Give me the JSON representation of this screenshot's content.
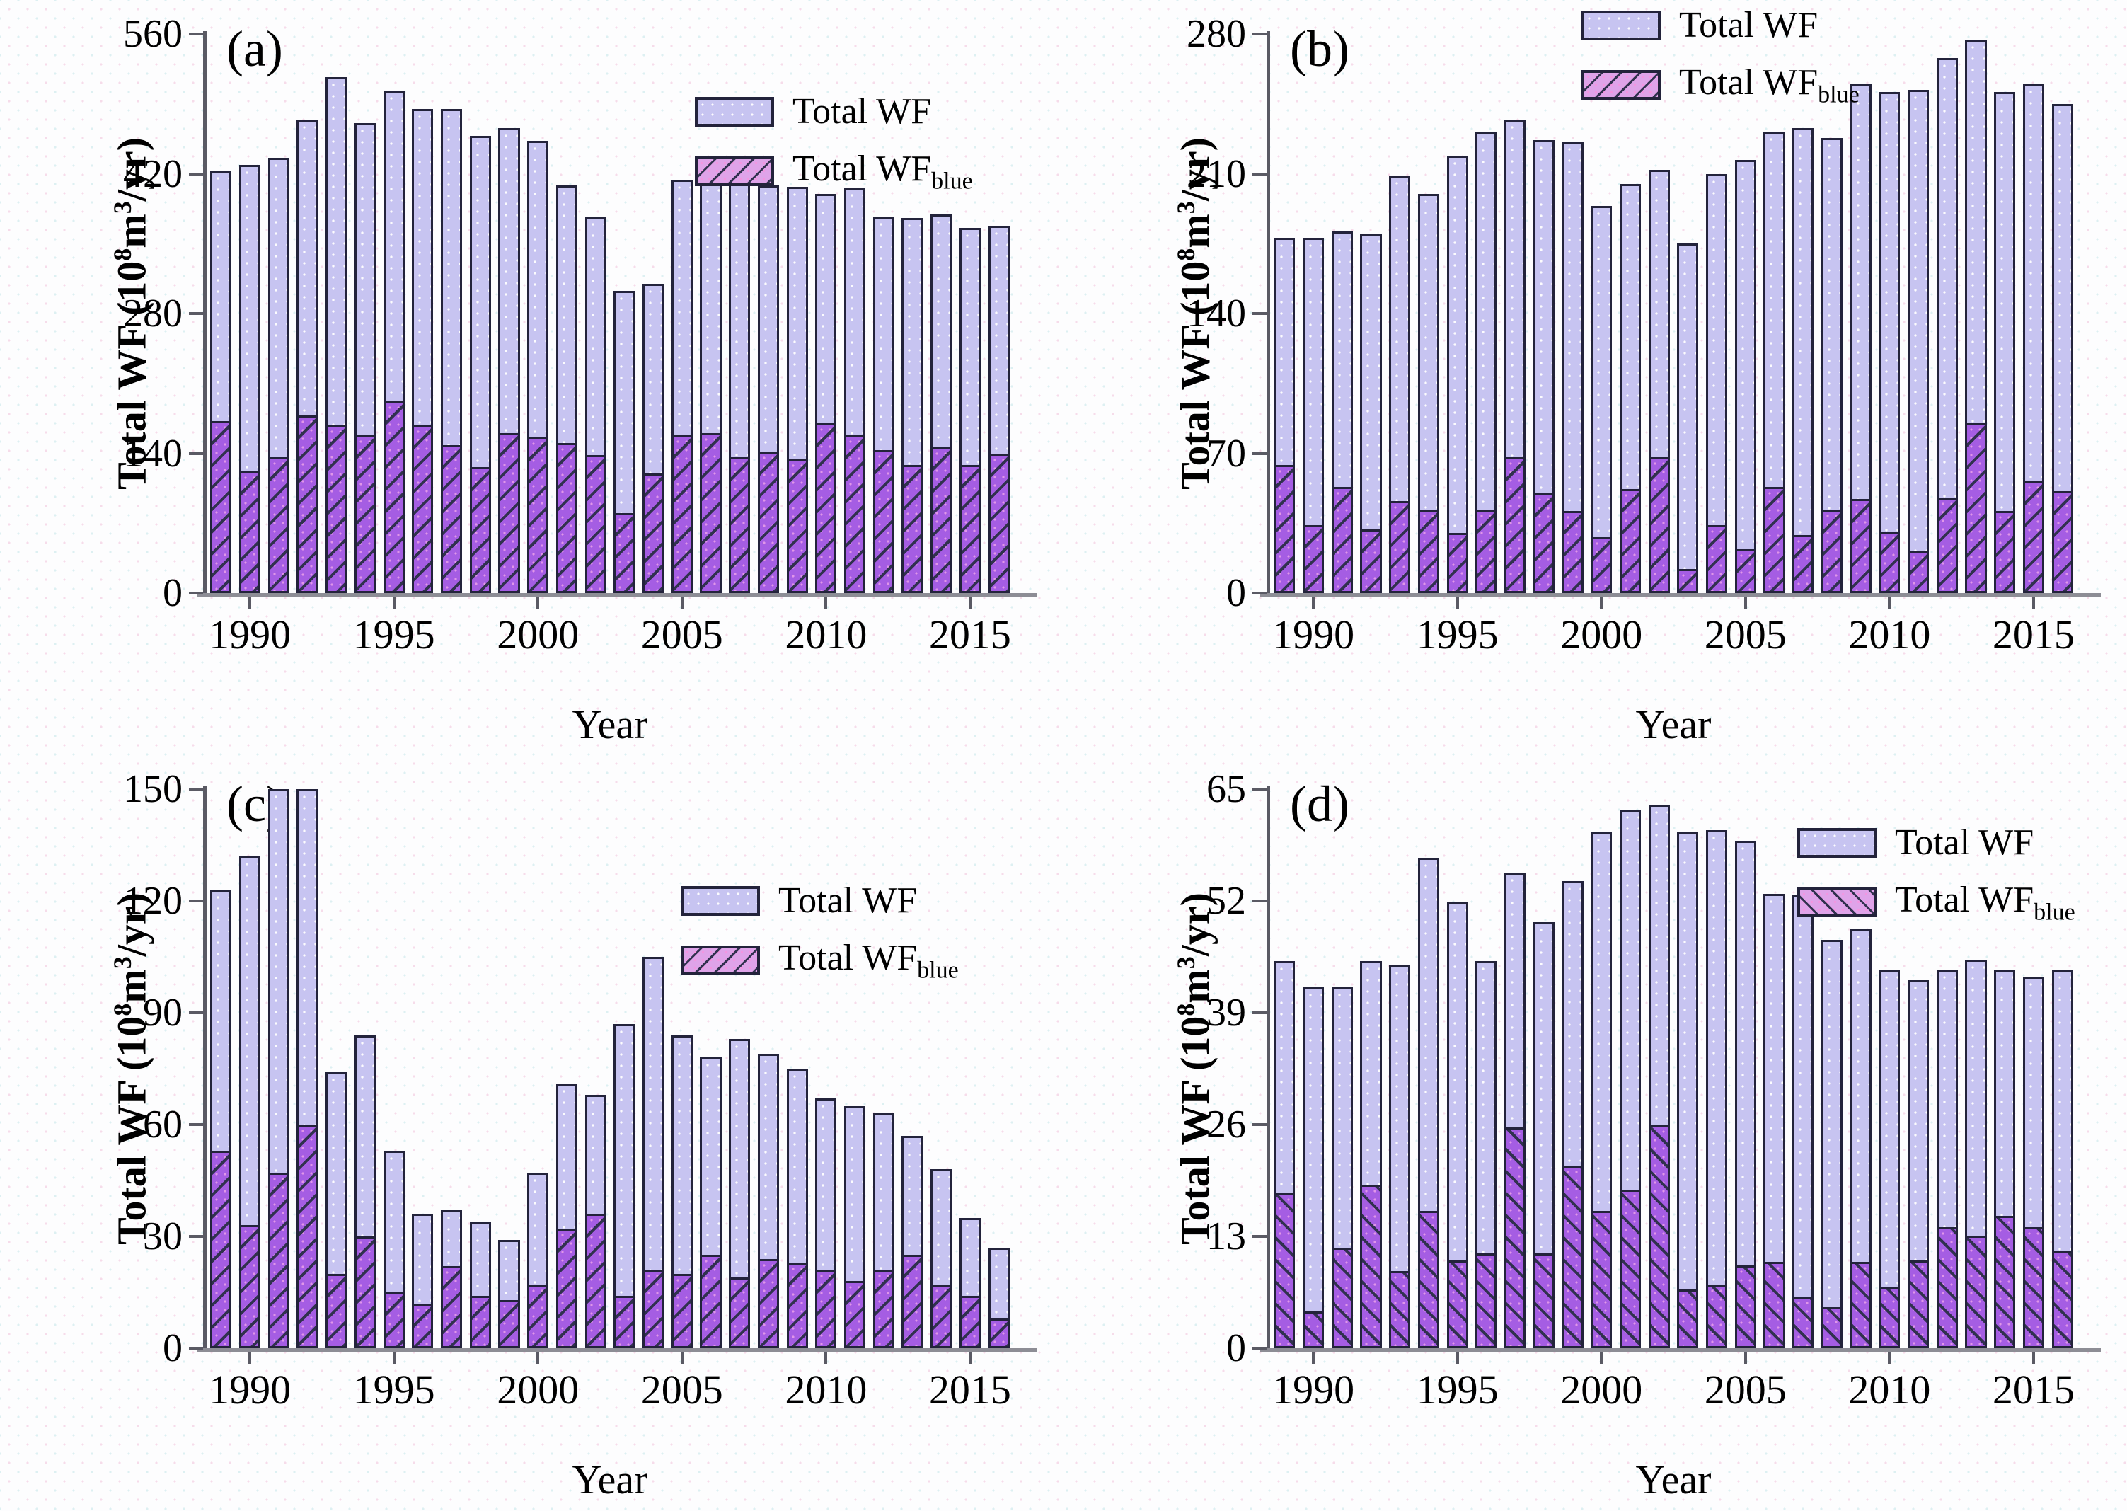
{
  "figure": {
    "xlabel": "Year",
    "ylabel_parts": {
      "p1": "Total WF (10",
      "sup1": "8",
      "p2": "m",
      "sup2": "3",
      "p3": "/yr)"
    },
    "legend": {
      "total": "Total WF",
      "blue_main": "Total WF",
      "blue_sub": "blue"
    },
    "colors": {
      "total_bar_fill": "#c7c4f1",
      "blue_bar_fill": "#a55de3",
      "legend_blue_fill": "#dfa3e9",
      "bar_border": "#23233b",
      "hatch_line": "#31314f",
      "axis_line": "#5a5a64",
      "baseline": "#8d8d95",
      "text": "#000000"
    }
  },
  "chart_data": [
    {
      "panel": "a",
      "label": "(a)",
      "type": "bar",
      "xlabel": "Year",
      "ylabel": "Total WF (10^8 m^3/yr)",
      "legend": [
        "Total WF",
        "Total WF_blue"
      ],
      "legend_pos": "upper-right",
      "hatch": "/",
      "ylim": [
        0,
        560
      ],
      "yticks": [
        0,
        140,
        280,
        420,
        560
      ],
      "xticks": [
        1990,
        1995,
        2000,
        2005,
        2010,
        2015
      ],
      "x": [
        1989,
        1990,
        1991,
        1992,
        1993,
        1994,
        1995,
        1996,
        1997,
        1998,
        1999,
        2000,
        2001,
        2002,
        2003,
        2004,
        2005,
        2006,
        2007,
        2008,
        2009,
        2010,
        2011,
        2012,
        2013,
        2014,
        2015,
        2016
      ],
      "series": [
        {
          "name": "Total WF",
          "values": [
            423,
            429,
            436,
            474,
            517,
            471,
            503,
            485,
            485,
            458,
            466,
            453,
            408,
            377,
            303,
            310,
            414,
            434,
            418,
            408,
            407,
            400,
            406,
            377,
            376,
            379,
            366,
            368
          ]
        },
        {
          "name": "Total WF_blue",
          "values": [
            172,
            122,
            136,
            178,
            168,
            158,
            192,
            168,
            148,
            126,
            160,
            156,
            150,
            138,
            80,
            120,
            158,
            160,
            136,
            142,
            134,
            170,
            158,
            143,
            128,
            146,
            128,
            140
          ]
        }
      ]
    },
    {
      "panel": "b",
      "label": "(b)",
      "type": "bar",
      "xlabel": "Year",
      "ylabel": "Total WF (10^8 m^3/yr)",
      "legend": [
        "Total WF",
        "Total WF_blue"
      ],
      "legend_pos": "upper-center",
      "hatch": "/",
      "ylim": [
        0,
        280
      ],
      "yticks": [
        0,
        70,
        140,
        210,
        280
      ],
      "xticks": [
        1990,
        1995,
        2000,
        2005,
        2010,
        2015
      ],
      "x": [
        1989,
        1990,
        1991,
        1992,
        1993,
        1994,
        1995,
        1996,
        1997,
        1998,
        1999,
        2000,
        2001,
        2002,
        2003,
        2004,
        2005,
        2006,
        2007,
        2008,
        2009,
        2010,
        2011,
        2012,
        2013,
        2014,
        2015,
        2016
      ],
      "series": [
        {
          "name": "Total WF",
          "values": [
            178,
            178,
            181,
            180,
            209,
            200,
            219,
            231,
            237,
            227,
            226,
            194,
            205,
            212,
            175,
            210,
            217,
            231,
            233,
            228,
            255,
            251,
            252,
            268,
            277,
            251,
            255,
            245
          ]
        },
        {
          "name": "Total WF_blue",
          "values": [
            64,
            34,
            53,
            32,
            46,
            42,
            30,
            42,
            68,
            50,
            41,
            28,
            52,
            68,
            12,
            34,
            22,
            53,
            29,
            42,
            47,
            31,
            21,
            48,
            85,
            41,
            56,
            51
          ]
        }
      ]
    },
    {
      "panel": "c",
      "label": "(c)",
      "type": "bar",
      "xlabel": "Year",
      "ylabel": "Total WF (10^8 m^3/yr)",
      "legend": [
        "Total WF",
        "Total WF_blue"
      ],
      "legend_pos": "middle-right",
      "hatch": "/",
      "ylim": [
        0,
        150
      ],
      "yticks": [
        0,
        30,
        60,
        90,
        120,
        150
      ],
      "xticks": [
        1990,
        1995,
        2000,
        2005,
        2010,
        2015
      ],
      "x": [
        1989,
        1990,
        1991,
        1992,
        1993,
        1994,
        1995,
        1996,
        1997,
        1998,
        1999,
        2000,
        2001,
        2002,
        2003,
        2004,
        2005,
        2006,
        2007,
        2008,
        2009,
        2010,
        2011,
        2012,
        2013,
        2014,
        2015,
        2016
      ],
      "series": [
        {
          "name": "Total WF",
          "values": [
            123,
            132,
            150,
            150,
            74,
            84,
            53,
            36,
            37,
            34,
            29,
            47,
            71,
            68,
            87,
            105,
            84,
            78,
            83,
            79,
            75,
            67,
            65,
            63,
            57,
            48,
            35,
            27
          ]
        },
        {
          "name": "Total WF_blue",
          "values": [
            53,
            33,
            47,
            60,
            20,
            30,
            15,
            12,
            22,
            14,
            13,
            17,
            32,
            36,
            14,
            21,
            20,
            25,
            19,
            24,
            23,
            21,
            18,
            21,
            25,
            17,
            14,
            8
          ]
        }
      ]
    },
    {
      "panel": "d",
      "label": "(d)",
      "type": "bar",
      "xlabel": "Year",
      "ylabel": "Total WF (10^8 m^3/yr)",
      "legend": [
        "Total WF",
        "Total WF_blue"
      ],
      "legend_pos": "upper-right",
      "hatch": "\\",
      "ylim": [
        0,
        65
      ],
      "yticks": [
        0,
        13,
        26,
        39,
        52,
        65
      ],
      "xticks": [
        1990,
        1995,
        2000,
        2005,
        2010,
        2015
      ],
      "x": [
        1989,
        1990,
        1991,
        1992,
        1993,
        1994,
        1995,
        1996,
        1997,
        1998,
        1999,
        2000,
        2001,
        2002,
        2003,
        2004,
        2005,
        2006,
        2007,
        2008,
        2009,
        2010,
        2011,
        2012,
        2013,
        2014,
        2015,
        2016
      ],
      "series": [
        {
          "name": "Total WF",
          "values": [
            45,
            42,
            42,
            45,
            44.5,
            57,
            51.8,
            45,
            55.3,
            49.5,
            54.3,
            60,
            62.6,
            63.2,
            60,
            60.2,
            59,
            52.8,
            52.7,
            47.5,
            48.7,
            44,
            42.8,
            44,
            45.2,
            44,
            43.2,
            44
          ]
        },
        {
          "name": "Total WF_blue",
          "values": [
            18,
            4.3,
            11.7,
            19,
            9,
            16,
            10.2,
            11,
            25.7,
            11,
            21.2,
            16,
            18.4,
            25.9,
            6.8,
            7.4,
            9.6,
            10,
            6,
            4.8,
            10,
            7.2,
            10.2,
            14.1,
            13.1,
            15.4,
            14.1,
            11.3
          ]
        }
      ]
    }
  ]
}
